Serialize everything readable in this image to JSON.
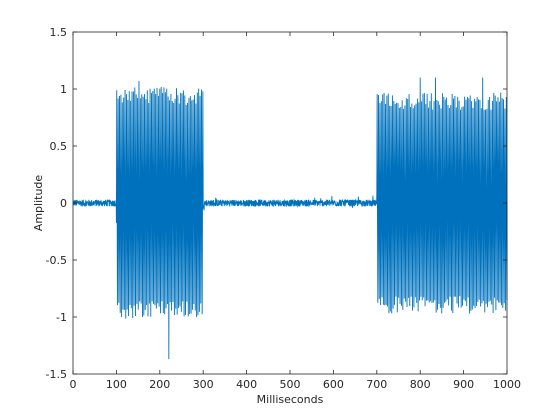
{
  "chart_data": {
    "type": "line",
    "title": "",
    "xlabel": "Milliseconds",
    "ylabel": "Amplitude",
    "xlim": [
      0,
      1000
    ],
    "ylim": [
      -1.5,
      1.5
    ],
    "xticks": [
      0,
      100,
      200,
      300,
      400,
      500,
      600,
      700,
      800,
      900,
      1000
    ],
    "xtick_labels": [
      "0",
      "100",
      "200",
      "300",
      "400",
      "500",
      "600",
      "700",
      "800",
      "900",
      "1000"
    ],
    "yticks": [
      -1.5,
      -1,
      -0.5,
      0,
      0.5,
      1,
      1.5
    ],
    "ytick_labels": [
      "-1.5",
      "-1",
      "-0.5",
      "0",
      "0.5",
      "1",
      "1.5"
    ],
    "grid": false,
    "line_color": "#0072BD",
    "segments": [
      {
        "x_start": 0,
        "x_end": 100,
        "kind": "noise",
        "amplitude": 0.03
      },
      {
        "x_start": 100,
        "x_end": 300,
        "kind": "tone-burst",
        "amplitude": 1.0,
        "peak_max": 1.07,
        "peak_min": -1.37,
        "peak_min_at": 220
      },
      {
        "x_start": 300,
        "x_end": 700,
        "kind": "noise",
        "amplitude": 0.03
      },
      {
        "x_start": 700,
        "x_end": 1000,
        "kind": "tone-burst",
        "amplitude": 0.95,
        "peak_max": 1.1,
        "peak_max_at": 800,
        "peak_min": -1.0
      }
    ]
  }
}
